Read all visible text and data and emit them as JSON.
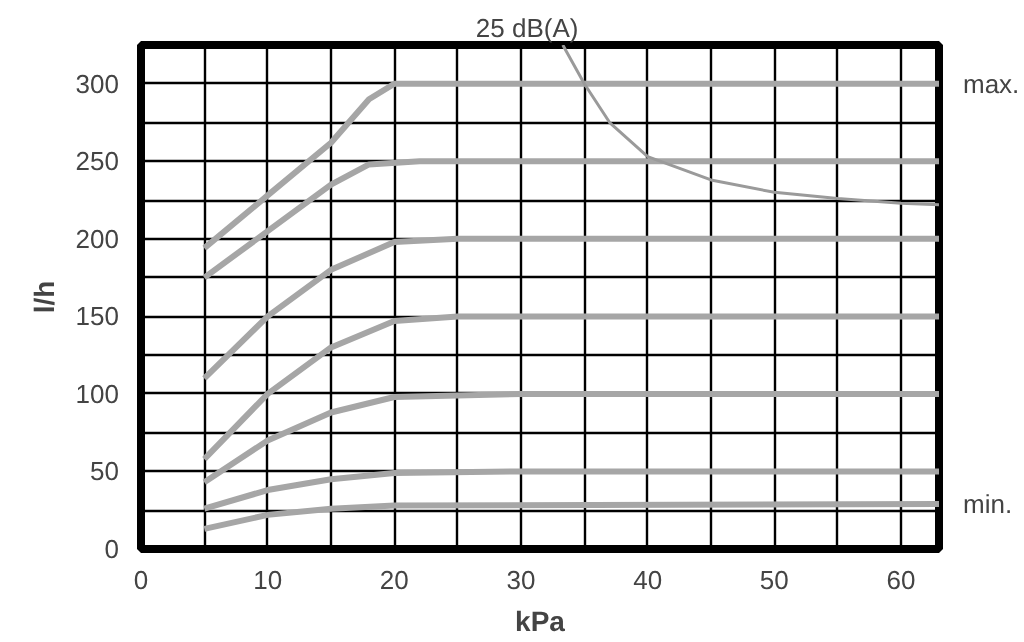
{
  "chart_data": {
    "type": "line",
    "xlabel": "kPa",
    "ylabel": "l/h",
    "xlim": [
      0,
      63
    ],
    "ylim": [
      0,
      325
    ],
    "xticks": [
      0,
      {
        "value": 5,
        "label": null
      },
      10,
      {
        "value": 15,
        "label": null
      },
      20,
      {
        "value": 25,
        "label": null
      },
      30,
      {
        "value": 35,
        "label": null
      },
      40,
      {
        "value": 45,
        "label": null
      },
      50,
      {
        "value": 55,
        "label": null
      },
      60
    ],
    "yticks": [
      0,
      {
        "value": 25,
        "label": null
      },
      50,
      {
        "value": 75,
        "label": null
      },
      100,
      {
        "value": 125,
        "label": null
      },
      150,
      {
        "value": 175,
        "label": null
      },
      200,
      {
        "value": 225,
        "label": null
      },
      250,
      {
        "value": 275,
        "label": null
      },
      300
    ],
    "grid": true,
    "legend": false,
    "series": [
      {
        "name": "max.",
        "color": "#a6a6a6",
        "x": [
          5,
          10,
          15,
          18,
          20,
          63
        ],
        "values": [
          194,
          228,
          262,
          290,
          300,
          300
        ]
      },
      {
        "color": "#a6a6a6",
        "x": [
          5,
          10,
          15,
          18,
          22,
          63
        ],
        "values": [
          175,
          205,
          235,
          248,
          250,
          250
        ]
      },
      {
        "color": "#a6a6a6",
        "x": [
          5,
          10,
          15,
          20,
          25,
          63
        ],
        "values": [
          110,
          150,
          180,
          198,
          200,
          200
        ]
      },
      {
        "color": "#a6a6a6",
        "x": [
          5,
          10,
          15,
          20,
          25,
          63
        ],
        "values": [
          58,
          100,
          130,
          147,
          150,
          150
        ]
      },
      {
        "color": "#a6a6a6",
        "x": [
          5,
          10,
          15,
          20,
          30,
          63
        ],
        "values": [
          43,
          70,
          88,
          98,
          100,
          100
        ]
      },
      {
        "color": "#a6a6a6",
        "x": [
          5,
          10,
          15,
          20,
          30,
          63
        ],
        "values": [
          26,
          38,
          45,
          49,
          50,
          50
        ]
      },
      {
        "name": "min.",
        "color": "#a6a6a6",
        "x": [
          5,
          10,
          15,
          20,
          63
        ],
        "values": [
          13,
          22,
          26,
          28,
          29
        ]
      },
      {
        "name": "25 dB(A)",
        "color": "#9a9a9a",
        "x": [
          33.3,
          35,
          37,
          40,
          45,
          50,
          55,
          60,
          63
        ],
        "values": [
          325,
          300,
          275,
          253,
          238,
          230,
          226,
          223,
          222
        ]
      }
    ]
  }
}
